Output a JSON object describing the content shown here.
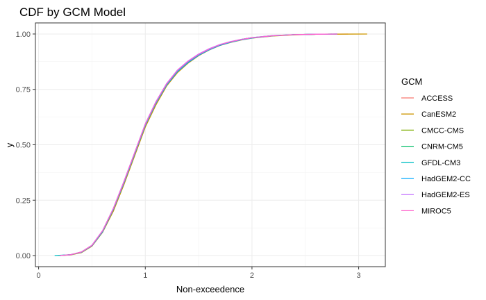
{
  "chart_data": {
    "type": "line",
    "title": "CDF by GCM Model",
    "xlabel": "Non-exceedence",
    "ylabel": "y",
    "xlim": [
      -0.03,
      3.25
    ],
    "ylim": [
      -0.05,
      1.05
    ],
    "x_ticks": [
      0,
      1,
      2,
      3
    ],
    "x_tick_labels": [
      "0",
      "1",
      "2",
      "3"
    ],
    "y_ticks": [
      0,
      0.25,
      0.5,
      0.75,
      1
    ],
    "y_tick_labels": [
      "0.00",
      "0.25",
      "0.50",
      "0.75",
      "1.00"
    ],
    "grid": true,
    "legend_position": "right",
    "legend_title": "GCM",
    "series": [
      {
        "name": "ACCESS",
        "color": "#F8766D",
        "x": [
          0.18,
          0.3,
          0.4,
          0.5,
          0.6,
          0.7,
          0.8,
          0.9,
          1.0,
          1.1,
          1.2,
          1.3,
          1.4,
          1.5,
          1.6,
          1.7,
          1.8,
          1.9,
          2.0,
          2.2,
          2.4,
          2.6,
          2.9
        ],
        "y": [
          0,
          0.004,
          0.015,
          0.045,
          0.11,
          0.21,
          0.33,
          0.46,
          0.59,
          0.69,
          0.77,
          0.83,
          0.87,
          0.905,
          0.93,
          0.95,
          0.963,
          0.974,
          0.982,
          0.992,
          0.997,
          0.999,
          1.0
        ]
      },
      {
        "name": "CanESM2",
        "color": "#CD9600",
        "x": [
          0.2,
          0.3,
          0.4,
          0.5,
          0.6,
          0.7,
          0.8,
          0.9,
          1.0,
          1.1,
          1.2,
          1.3,
          1.4,
          1.5,
          1.6,
          1.7,
          1.8,
          1.9,
          2.0,
          2.2,
          2.4,
          2.6,
          3.08
        ],
        "y": [
          0,
          0.003,
          0.013,
          0.042,
          0.105,
          0.2,
          0.32,
          0.45,
          0.58,
          0.68,
          0.765,
          0.825,
          0.868,
          0.902,
          0.928,
          0.948,
          0.962,
          0.973,
          0.981,
          0.991,
          0.996,
          0.999,
          1.0
        ]
      },
      {
        "name": "CMCC-CMS",
        "color": "#7CAE00",
        "x": [
          0.2,
          0.3,
          0.4,
          0.5,
          0.6,
          0.7,
          0.8,
          0.9,
          1.0,
          1.1,
          1.2,
          1.3,
          1.4,
          1.5,
          1.6,
          1.7,
          1.8,
          1.9,
          2.0,
          2.2,
          2.4,
          2.6,
          2.8
        ],
        "y": [
          0,
          0.004,
          0.015,
          0.045,
          0.11,
          0.21,
          0.33,
          0.46,
          0.59,
          0.69,
          0.772,
          0.832,
          0.873,
          0.906,
          0.931,
          0.951,
          0.964,
          0.975,
          0.983,
          0.992,
          0.997,
          0.999,
          1.0
        ]
      },
      {
        "name": "CNRM-CM5",
        "color": "#00BE67",
        "x": [
          0.2,
          0.3,
          0.4,
          0.5,
          0.6,
          0.7,
          0.8,
          0.9,
          1.0,
          1.1,
          1.2,
          1.3,
          1.4,
          1.5,
          1.6,
          1.7,
          1.8,
          1.9,
          2.0,
          2.2,
          2.4,
          2.6,
          2.75
        ],
        "y": [
          0,
          0.004,
          0.016,
          0.046,
          0.112,
          0.212,
          0.333,
          0.463,
          0.593,
          0.693,
          0.775,
          0.835,
          0.876,
          0.908,
          0.933,
          0.952,
          0.965,
          0.976,
          0.984,
          0.993,
          0.997,
          0.999,
          1.0
        ]
      },
      {
        "name": "GFDL-CM3",
        "color": "#00BFC4",
        "x": [
          0.15,
          0.3,
          0.4,
          0.5,
          0.6,
          0.7,
          0.8,
          0.9,
          1.0,
          1.1,
          1.2,
          1.3,
          1.4,
          1.5,
          1.6,
          1.7,
          1.8,
          1.9,
          2.0,
          2.2,
          2.4,
          2.6,
          2.8
        ],
        "y": [
          0,
          0.004,
          0.015,
          0.045,
          0.11,
          0.21,
          0.33,
          0.46,
          0.59,
          0.69,
          0.77,
          0.83,
          0.871,
          0.905,
          0.93,
          0.95,
          0.963,
          0.974,
          0.982,
          0.992,
          0.997,
          0.999,
          1.0
        ]
      },
      {
        "name": "HadGEM2-CC",
        "color": "#00A9FF",
        "x": [
          0.2,
          0.3,
          0.4,
          0.5,
          0.6,
          0.7,
          0.8,
          0.9,
          1.0,
          1.1,
          1.2,
          1.3,
          1.4,
          1.5,
          1.6,
          1.7,
          1.8,
          1.9,
          2.0,
          2.2,
          2.4,
          2.6,
          2.8
        ],
        "y": [
          0,
          0.004,
          0.015,
          0.044,
          0.108,
          0.208,
          0.328,
          0.458,
          0.588,
          0.688,
          0.77,
          0.83,
          0.871,
          0.904,
          0.929,
          0.949,
          0.963,
          0.974,
          0.982,
          0.992,
          0.997,
          0.999,
          1.0
        ]
      },
      {
        "name": "HadGEM2-ES",
        "color": "#C77CFF",
        "x": [
          0.2,
          0.3,
          0.4,
          0.5,
          0.6,
          0.7,
          0.8,
          0.9,
          1.0,
          1.1,
          1.2,
          1.3,
          1.4,
          1.5,
          1.6,
          1.7,
          1.8,
          1.9,
          2.0,
          2.2,
          2.4,
          2.6,
          2.8
        ],
        "y": [
          0,
          0.004,
          0.016,
          0.047,
          0.113,
          0.213,
          0.335,
          0.465,
          0.595,
          0.695,
          0.777,
          0.837,
          0.878,
          0.91,
          0.934,
          0.953,
          0.966,
          0.976,
          0.984,
          0.993,
          0.997,
          0.999,
          1.0
        ]
      },
      {
        "name": "MIROC5",
        "color": "#FF61CC",
        "x": [
          0.2,
          0.3,
          0.4,
          0.5,
          0.6,
          0.7,
          0.8,
          0.9,
          1.0,
          1.1,
          1.2,
          1.3,
          1.4,
          1.5,
          1.6,
          1.7,
          1.8,
          1.9,
          2.0,
          2.2,
          2.4,
          2.6,
          2.8
        ],
        "y": [
          0,
          0.004,
          0.016,
          0.046,
          0.112,
          0.212,
          0.333,
          0.463,
          0.593,
          0.693,
          0.775,
          0.835,
          0.876,
          0.908,
          0.932,
          0.952,
          0.965,
          0.975,
          0.983,
          0.992,
          0.997,
          0.999,
          1.0
        ]
      }
    ]
  }
}
